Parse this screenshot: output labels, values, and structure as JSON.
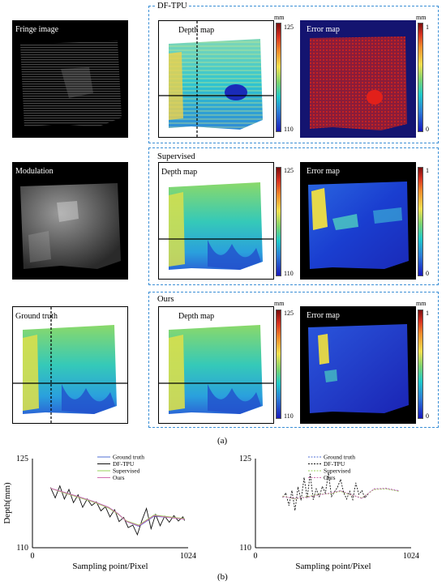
{
  "figure": {
    "row1": {
      "fringe_label": "Fringe image",
      "group_title": "DF-TPU",
      "depth_label": "Depth map",
      "error_label": "Error map"
    },
    "row2": {
      "modulation_label": "Modulation",
      "group_title": "Supervised",
      "depth_label": "Depth map",
      "error_label": "Error map"
    },
    "row3": {
      "gt_label": "Ground truth",
      "group_title": "Ours",
      "depth_label": "Depth map",
      "error_label": "Error map"
    },
    "depth_colorbar": {
      "unit": "mm",
      "max": "125",
      "min": "110"
    },
    "error_colorbar": {
      "unit": "mm",
      "max": "1",
      "min": "0"
    },
    "caption_a": "(a)",
    "caption_b": "(b)"
  },
  "colors": {
    "group_border": "#3b8fd6",
    "ground_truth": "#4f6fd6",
    "df_tpu": "#111111",
    "supervised": "#9ad25a",
    "ours": "#d06fb0"
  },
  "chart_data": [
    {
      "type": "line",
      "xlabel": "Sampling point/Pixel",
      "ylabel": "Depth(mm)",
      "x_ticks": [
        "0",
        "1024"
      ],
      "y_ticks": [
        "125",
        "110"
      ],
      "xlim": [
        0,
        1024
      ],
      "ylim": [
        110,
        125
      ],
      "legend": [
        "Ground truth",
        "DF-TPU",
        "Supervised",
        "Ours"
      ],
      "series": [
        {
          "name": "Ground truth",
          "x": [
            120,
            200,
            300,
            400,
            500,
            560,
            620,
            700,
            800,
            900,
            1000
          ],
          "y": [
            120.0,
            119.4,
            118.6,
            117.8,
            116.8,
            115.8,
            114.4,
            113.6,
            115.3,
            115.1,
            114.8
          ]
        },
        {
          "name": "DF-TPU",
          "x": [
            120,
            150,
            180,
            210,
            240,
            270,
            300,
            330,
            360,
            390,
            420,
            450,
            480,
            510,
            540,
            570,
            600,
            630,
            660,
            690,
            720,
            750,
            780,
            810,
            840,
            870,
            900,
            930,
            960,
            990,
            1000
          ],
          "y": [
            120.1,
            118.4,
            120.4,
            118.2,
            119.8,
            117.6,
            118.9,
            116.8,
            118.2,
            117.1,
            117.7,
            116.2,
            116.9,
            115.2,
            116.4,
            114.4,
            115.1,
            113.4,
            113.8,
            112.2,
            114.6,
            116.6,
            113.2,
            115.6,
            113.7,
            115.3,
            114.3,
            115.4,
            114.5,
            115.2,
            114.6
          ]
        },
        {
          "name": "Supervised",
          "x": [
            120,
            200,
            300,
            400,
            500,
            560,
            620,
            700,
            800,
            900,
            1000
          ],
          "y": [
            120.0,
            119.3,
            118.5,
            117.7,
            116.7,
            115.7,
            114.5,
            113.8,
            115.5,
            115.2,
            114.9
          ]
        },
        {
          "name": "Ours",
          "x": [
            120,
            200,
            300,
            400,
            500,
            560,
            620,
            700,
            800,
            900,
            1000
          ],
          "y": [
            120.0,
            119.4,
            118.6,
            117.8,
            116.8,
            115.8,
            114.4,
            113.7,
            115.4,
            115.1,
            114.8
          ]
        }
      ]
    },
    {
      "type": "line",
      "xlabel": "Sampling point/Pixel",
      "ylabel": "",
      "x_ticks": [
        "0",
        "1024"
      ],
      "y_ticks": [
        "125",
        "110"
      ],
      "xlim": [
        0,
        1024
      ],
      "ylim": [
        110,
        125
      ],
      "legend": [
        "Ground truth",
        "DF-TPU",
        "Supervised",
        "Ours"
      ],
      "series": [
        {
          "name": "Ground truth",
          "x": [
            180,
            260,
            340,
            420,
            500,
            560,
            620,
            700,
            780,
            860,
            940
          ],
          "y": [
            118.6,
            118.3,
            118.5,
            118.9,
            119.2,
            119.6,
            119.0,
            118.3,
            119.9,
            120.0,
            119.6
          ]
        },
        {
          "name": "DF-TPU",
          "x": [
            180,
            200,
            220,
            240,
            260,
            280,
            300,
            320,
            340,
            360,
            380,
            400,
            420,
            440,
            460,
            480,
            500,
            520,
            540,
            560,
            580,
            600,
            620,
            640,
            660,
            680,
            700,
            720,
            740
          ],
          "y": [
            118.5,
            119.2,
            117.1,
            119.6,
            116.3,
            120.2,
            118.0,
            121.8,
            118.4,
            122.4,
            118.1,
            119.9,
            118.6,
            120.3,
            119.2,
            122.6,
            118.6,
            119.4,
            120.2,
            121.5,
            119.3,
            118.2,
            119.5,
            118.1,
            120.9,
            119.0,
            119.6,
            118.4,
            119.0
          ]
        },
        {
          "name": "Supervised",
          "x": [
            180,
            260,
            340,
            420,
            500,
            560,
            620,
            700,
            780,
            860,
            940
          ],
          "y": [
            118.7,
            118.2,
            118.6,
            119.0,
            119.1,
            119.5,
            118.9,
            118.4,
            119.8,
            119.9,
            119.5
          ]
        },
        {
          "name": "Ours",
          "x": [
            180,
            260,
            340,
            420,
            500,
            560,
            620,
            700,
            780,
            860,
            940
          ],
          "y": [
            118.6,
            118.3,
            118.5,
            118.9,
            119.2,
            119.6,
            119.0,
            118.3,
            119.9,
            120.0,
            119.6
          ]
        }
      ]
    }
  ]
}
